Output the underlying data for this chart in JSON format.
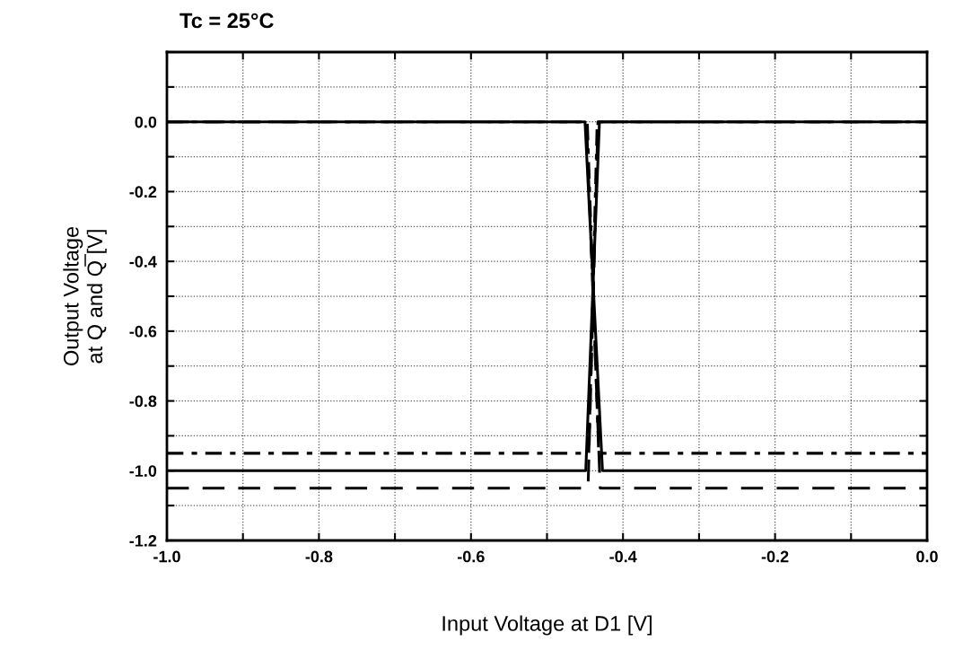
{
  "chart_data": {
    "type": "line",
    "title": "Tc = 25°C",
    "xlabel": "Input Voltage at D1 [V]",
    "ylabel": "Output Voltage\nat Q and Q̅ [V]",
    "series": [
      {
        "color": "#000000",
        "line_style": "solid",
        "x": [
          -1.0,
          -0.45,
          -0.427,
          0.0
        ],
        "values": [
          0.0,
          0.0,
          -1.0,
          -1.0
        ]
      },
      {
        "color": "#000000",
        "line_style": "solid",
        "x": [
          -1.0,
          -0.449,
          -0.431,
          0.0
        ],
        "values": [
          -1.0,
          -1.0,
          0.0,
          0.0
        ]
      },
      {
        "color": "#000000",
        "line_style": "dashed",
        "x": [
          -1.0,
          -0.448,
          -0.43,
          0.0
        ],
        "values": [
          0.0,
          0.0,
          -1.05,
          -1.05
        ]
      },
      {
        "color": "#000000",
        "line_style": "dashed",
        "x": [
          -1.0,
          -0.446,
          -0.433,
          0.0
        ],
        "values": [
          -1.05,
          -1.05,
          0.0,
          0.0
        ]
      },
      {
        "color": "#000000",
        "line_style": "dashdot",
        "x": [
          -1.0,
          -0.447,
          -0.432,
          0.0
        ],
        "values": [
          0.0,
          0.0,
          -0.95,
          -0.95
        ]
      },
      {
        "color": "#000000",
        "line_style": "dashdot",
        "x": [
          -1.0,
          -0.445,
          -0.434,
          0.0
        ],
        "values": [
          -0.95,
          -0.95,
          0.0,
          0.0
        ]
      }
    ],
    "xlim": [
      -1.0,
      0.0
    ],
    "ylim": [
      -1.2,
      0.2
    ],
    "xticks": [
      {
        "value": -1.0,
        "label": "-1.0"
      },
      {
        "value": -0.9,
        "label": null
      },
      -0.8,
      {
        "value": -0.7,
        "label": null
      },
      -0.6,
      {
        "value": -0.5,
        "label": null
      },
      -0.4,
      {
        "value": -0.3,
        "label": null
      },
      -0.2,
      {
        "value": -0.1,
        "label": null
      },
      {
        "value": 0.0,
        "label": "0.0"
      }
    ],
    "yticks": [
      -1.2,
      {
        "value": -1.1,
        "label": null
      },
      {
        "value": -1.0,
        "label": "-1.0"
      },
      {
        "value": -0.9,
        "label": null
      },
      -0.8,
      {
        "value": -0.7,
        "label": null
      },
      -0.6,
      {
        "value": -0.5,
        "label": null
      },
      -0.4,
      {
        "value": -0.3,
        "label": null
      },
      -0.2,
      {
        "value": -0.1,
        "label": null
      },
      {
        "value": 0.0,
        "label": "0.0"
      },
      {
        "value": 0.1,
        "label": null
      },
      {
        "value": 0.2,
        "label": null
      }
    ],
    "grid": true,
    "legend": false,
    "marker": "none"
  }
}
